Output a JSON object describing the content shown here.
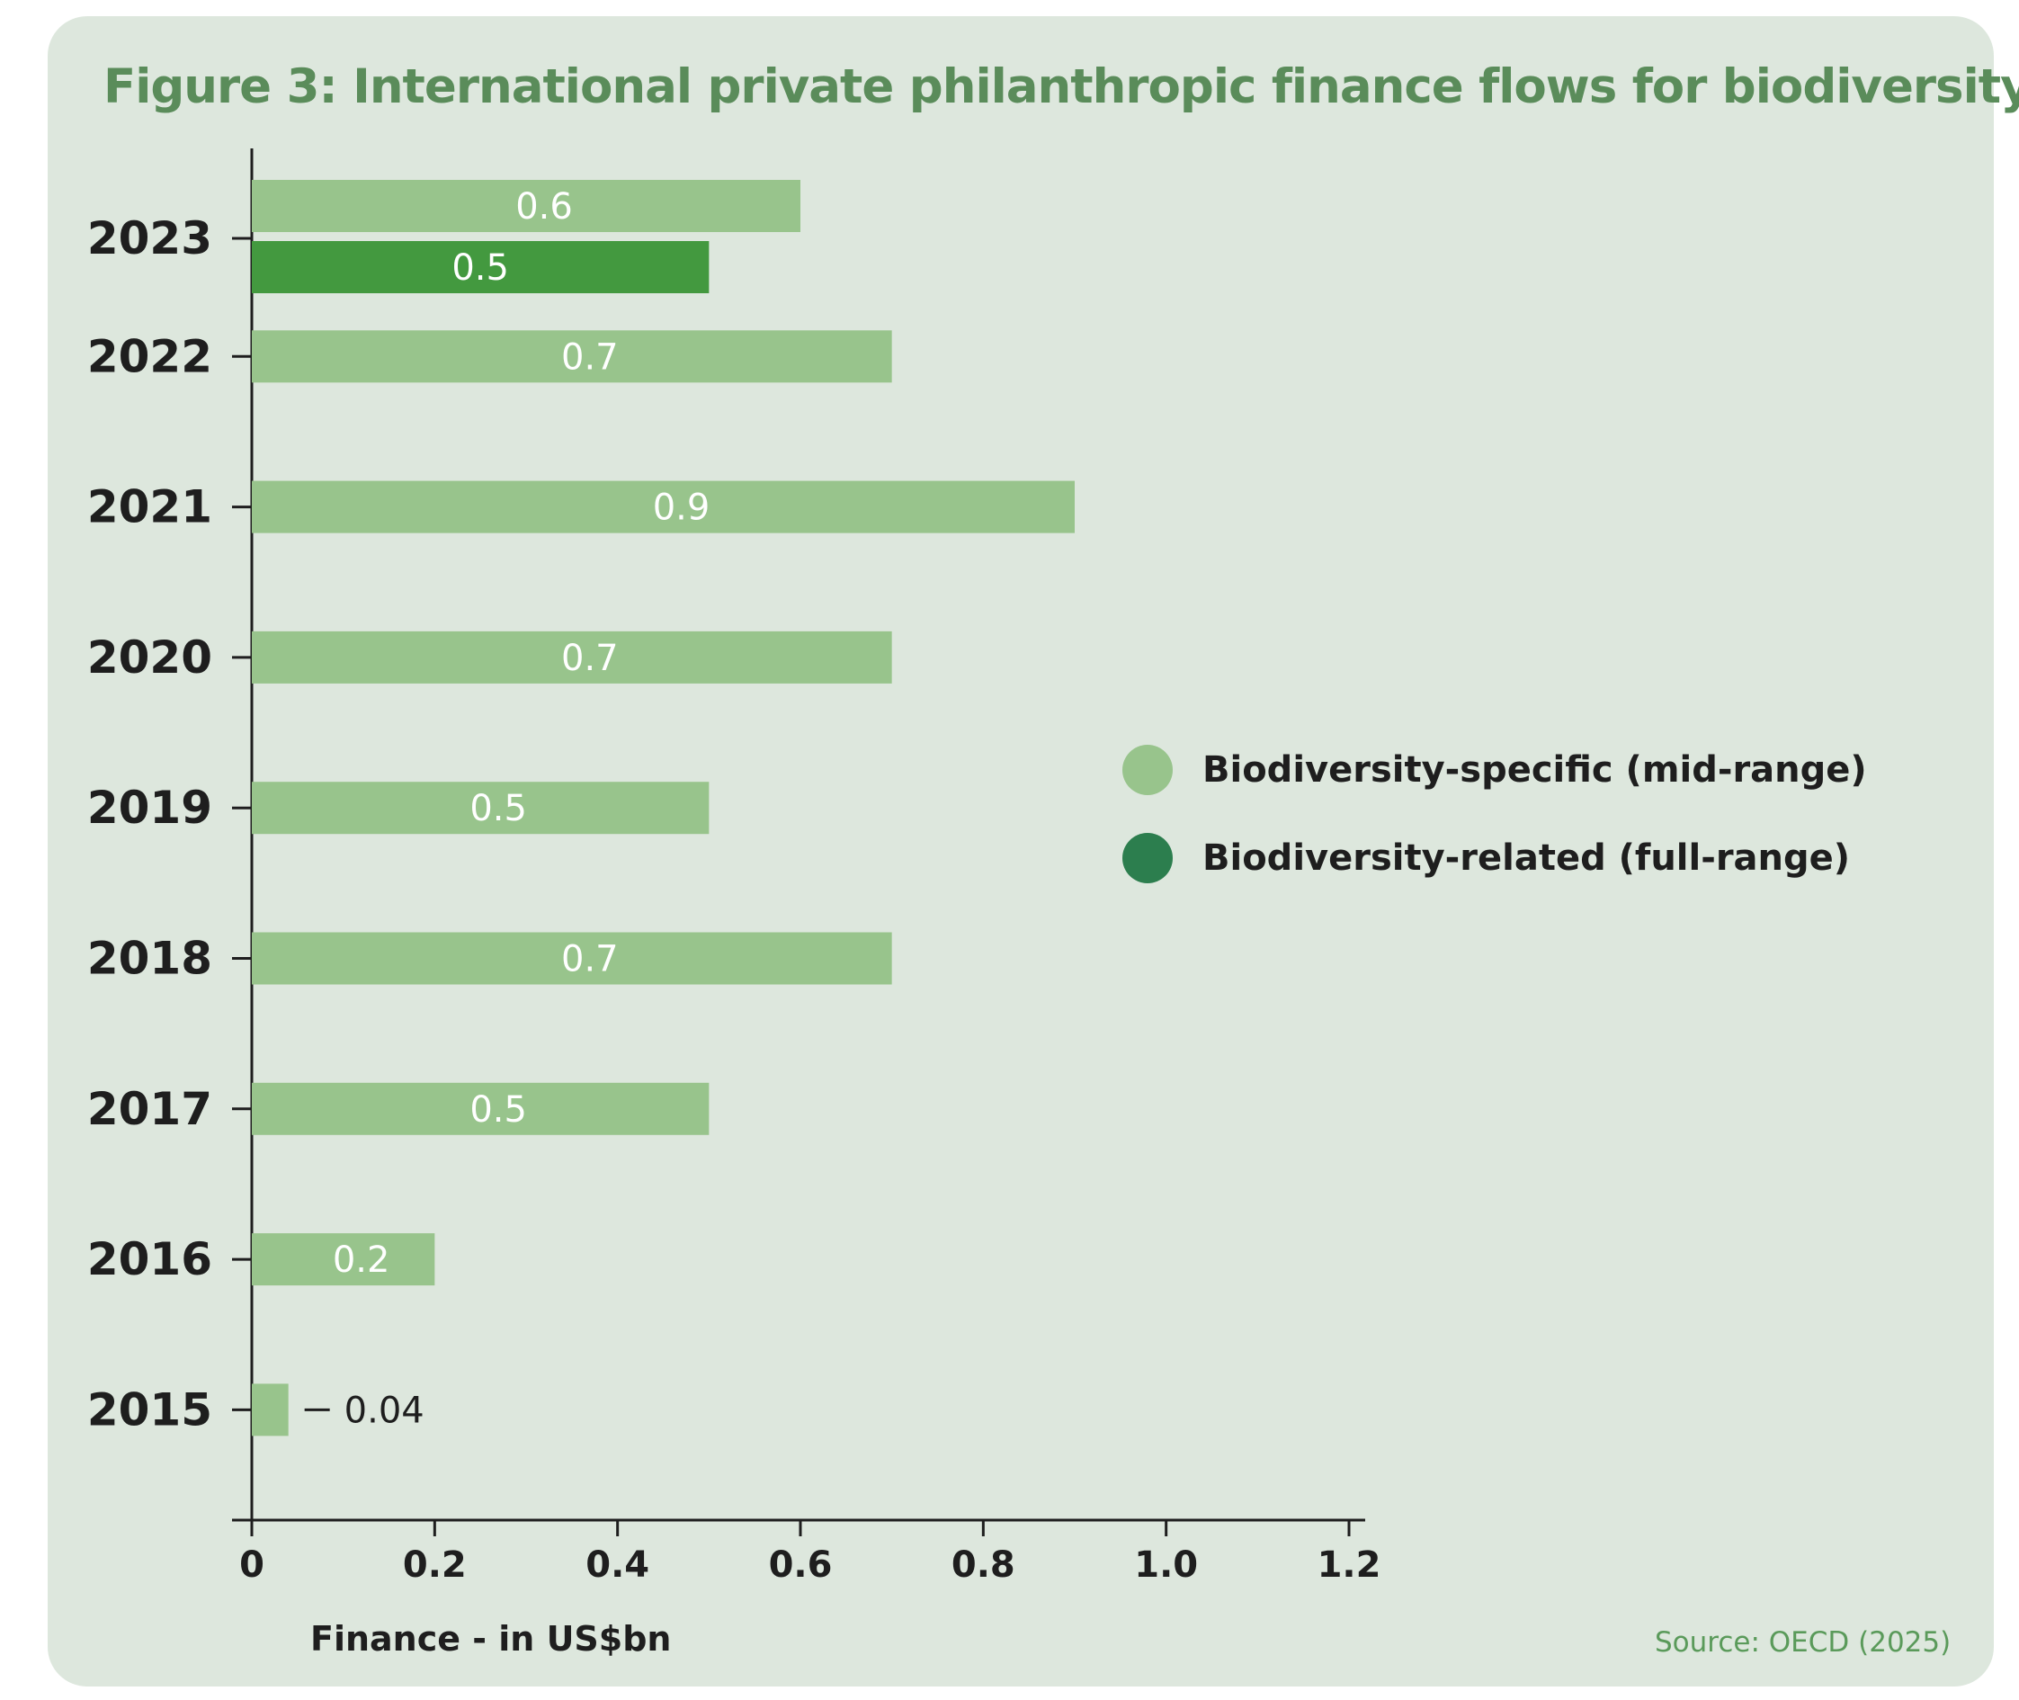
{
  "colors": {
    "background": "#dde7dd",
    "specific": "#98c48c",
    "related": "#43993f",
    "related_legend": "#2c7e4e",
    "title": "#5a8c5a",
    "axis": "#1e1e1e"
  },
  "source": "Source: OECD (2025)",
  "chart_data": {
    "type": "bar",
    "orientation": "horizontal",
    "title": "Figure 3: International private philanthropic finance flows for biodiversity",
    "xlabel": "Finance - in US$bn",
    "ylabel": "",
    "xlim": [
      0,
      1.2
    ],
    "x_ticks": [
      "0",
      "0.2",
      "0.4",
      "0.6",
      "0.8",
      "1.0",
      "1.2"
    ],
    "categories": [
      "2023",
      "2022",
      "2021",
      "2020",
      "2019",
      "2018",
      "2017",
      "2016",
      "2015"
    ],
    "series": [
      {
        "name": "Biodiversity-specific (mid-range)",
        "color": "#98c48c",
        "values": [
          0.6,
          0.7,
          0.9,
          0.7,
          0.5,
          0.7,
          0.5,
          0.2,
          0.04
        ],
        "labels": [
          "0.6",
          "0.7",
          "0.9",
          "0.7",
          "0.5",
          "0.7",
          "0.5",
          "0.2",
          "0.04"
        ]
      },
      {
        "name": "Biodiversity-related (full-range)",
        "color": "#43993f",
        "values": [
          0.5,
          null,
          null,
          null,
          null,
          null,
          null,
          null,
          null
        ],
        "labels": [
          "0.5",
          "",
          "",
          "",
          "",
          "",
          "",
          "",
          ""
        ]
      }
    ],
    "legend_position": "right",
    "grid": false
  }
}
